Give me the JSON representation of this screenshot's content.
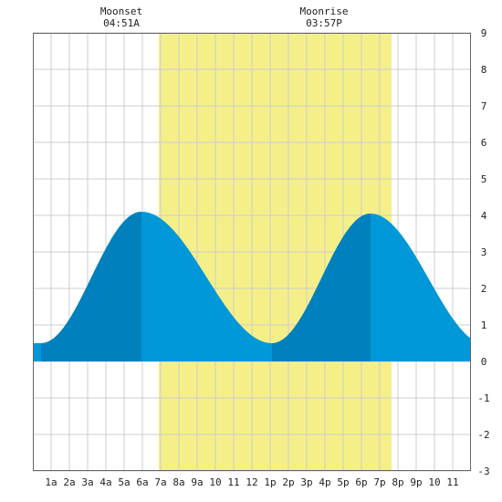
{
  "chart_data": {
    "type": "area",
    "title": "",
    "xlabel": "",
    "ylabel": "",
    "xlim": [
      0,
      24
    ],
    "ylim": [
      -3,
      9
    ],
    "grid": true,
    "y_ticks": [
      9,
      8,
      7,
      6,
      5,
      4,
      3,
      2,
      1,
      0,
      -1,
      -2,
      -3
    ],
    "x_ticks": [
      {
        "x": 1,
        "label": "1a"
      },
      {
        "x": 2,
        "label": "2a"
      },
      {
        "x": 3,
        "label": "3a"
      },
      {
        "x": 4,
        "label": "4a"
      },
      {
        "x": 5,
        "label": "5a"
      },
      {
        "x": 6,
        "label": "6a"
      },
      {
        "x": 7,
        "label": "7a"
      },
      {
        "x": 8,
        "label": "8a"
      },
      {
        "x": 9,
        "label": "9a"
      },
      {
        "x": 10,
        "label": "10"
      },
      {
        "x": 11,
        "label": "11"
      },
      {
        "x": 12,
        "label": "12"
      },
      {
        "x": 13,
        "label": "1p"
      },
      {
        "x": 14,
        "label": "2p"
      },
      {
        "x": 15,
        "label": "3p"
      },
      {
        "x": 16,
        "label": "4p"
      },
      {
        "x": 17,
        "label": "5p"
      },
      {
        "x": 18,
        "label": "6p"
      },
      {
        "x": 19,
        "label": "7p"
      },
      {
        "x": 20,
        "label": "8p"
      },
      {
        "x": 21,
        "label": "9p"
      },
      {
        "x": 22,
        "label": "10"
      },
      {
        "x": 23,
        "label": "11"
      }
    ],
    "daylight": {
      "start": 6.9,
      "end": 19.65
    },
    "tide_extremes": [
      {
        "x": 0.45,
        "y": 0.5
      },
      {
        "x": 5.95,
        "y": 4.1
      },
      {
        "x": 13.1,
        "y": 0.5
      },
      {
        "x": 18.5,
        "y": 4.05
      },
      {
        "x": 24.9,
        "y": 0.45
      }
    ],
    "rising_bands": [
      [
        0.45,
        5.95
      ],
      [
        13.1,
        18.5
      ]
    ],
    "annotations": [
      {
        "x": 4.85,
        "title": "Moonset",
        "time": "04:51A"
      },
      {
        "x": 15.95,
        "title": "Moonrise",
        "time": "03:57P"
      }
    ],
    "colors": {
      "tide": "#0098d8",
      "tide_rising": "#0080bc",
      "daylight": "#f5ef8a",
      "grid": "#cccccc",
      "frame": "#666666"
    }
  }
}
